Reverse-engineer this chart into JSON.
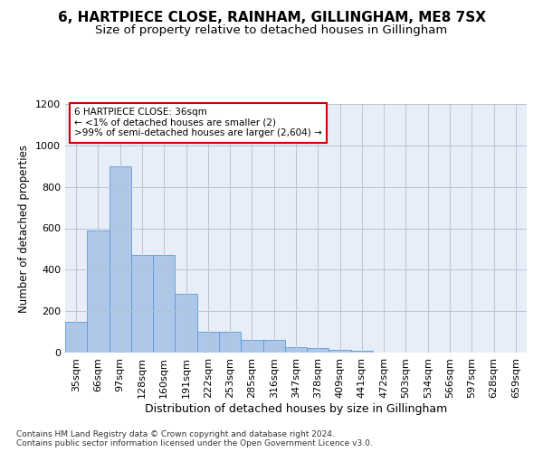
{
  "title1": "6, HARTPIECE CLOSE, RAINHAM, GILLINGHAM, ME8 7SX",
  "title2": "Size of property relative to detached houses in Gillingham",
  "xlabel": "Distribution of detached houses by size in Gillingham",
  "ylabel": "Number of detached properties",
  "categories": [
    "35sqm",
    "66sqm",
    "97sqm",
    "128sqm",
    "160sqm",
    "191sqm",
    "222sqm",
    "253sqm",
    "285sqm",
    "316sqm",
    "347sqm",
    "378sqm",
    "409sqm",
    "441sqm",
    "472sqm",
    "503sqm",
    "534sqm",
    "566sqm",
    "597sqm",
    "628sqm",
    "659sqm"
  ],
  "values": [
    150,
    590,
    900,
    470,
    470,
    285,
    100,
    100,
    60,
    60,
    25,
    20,
    15,
    10,
    0,
    0,
    0,
    0,
    0,
    0,
    0
  ],
  "bar_color": "#aec6e8",
  "bar_edge_color": "#5b9bd5",
  "annotation_text": "6 HARTPIECE CLOSE: 36sqm\n← <1% of detached houses are smaller (2)\n>99% of semi-detached houses are larger (2,604) →",
  "annotation_box_color": "#ffffff",
  "annotation_box_edge_color": "#cc0000",
  "ylim": [
    0,
    1200
  ],
  "yticks": [
    0,
    200,
    400,
    600,
    800,
    1000,
    1200
  ],
  "footnote": "Contains HM Land Registry data © Crown copyright and database right 2024.\nContains public sector information licensed under the Open Government Licence v3.0.",
  "bg_color": "#e8eef8",
  "grid_color": "#b8c4d8",
  "title1_fontsize": 11,
  "title2_fontsize": 9.5,
  "xlabel_fontsize": 9,
  "ylabel_fontsize": 8.5,
  "tick_fontsize": 8,
  "footnote_fontsize": 6.5
}
